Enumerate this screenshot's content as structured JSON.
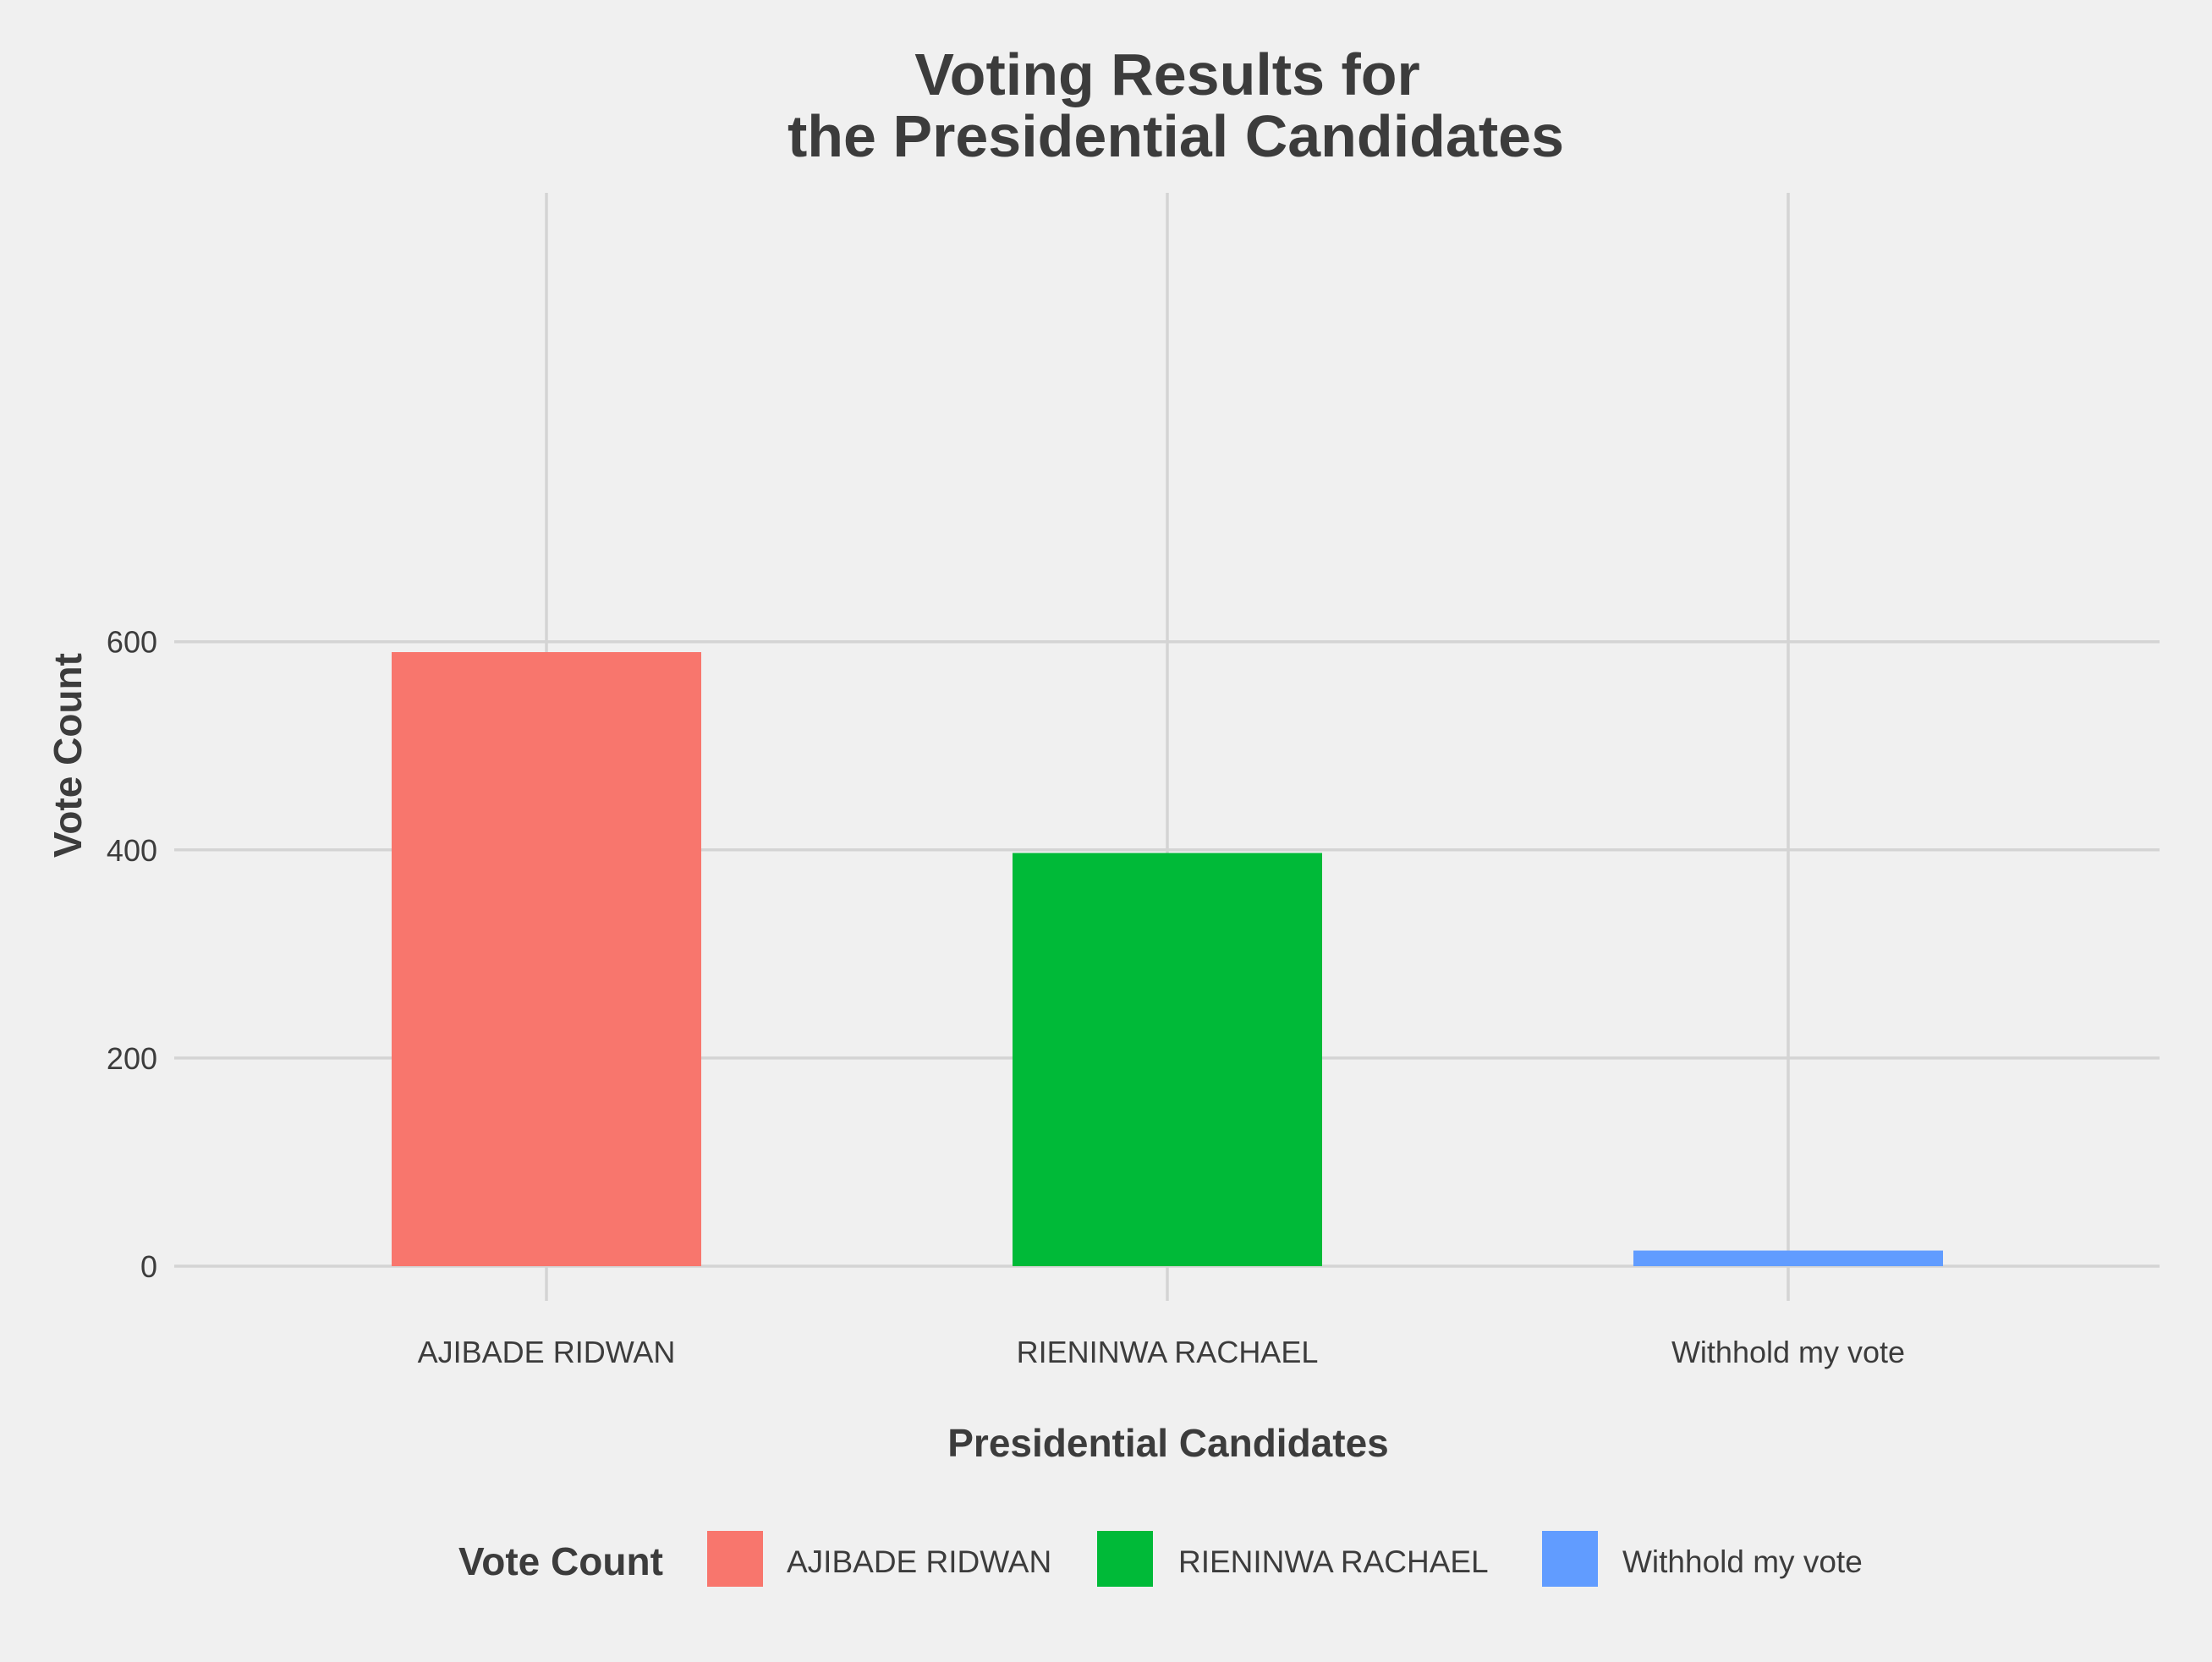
{
  "chart_data": {
    "type": "bar",
    "title": [
      "Voting Results for",
      "the Presidential Candidates"
    ],
    "xlabel": "Presidential Candidates",
    "ylabel": "Vote Count",
    "categories": [
      "AJIBADE RIDWAN",
      "RIENINWA RACHAEL",
      "Withhold my vote"
    ],
    "values": [
      590,
      397,
      15
    ],
    "colors": [
      "#f8766d",
      "#00ba38",
      "#619cff"
    ],
    "ylim": [
      -30,
      620
    ],
    "yticks": [
      0,
      200,
      400,
      600
    ],
    "grid": true,
    "legend": {
      "title": "Vote Count",
      "position": "bottom",
      "entries": [
        "AJIBADE RIDWAN",
        "RIENINWA RACHAEL",
        "Withhold my vote"
      ]
    }
  }
}
